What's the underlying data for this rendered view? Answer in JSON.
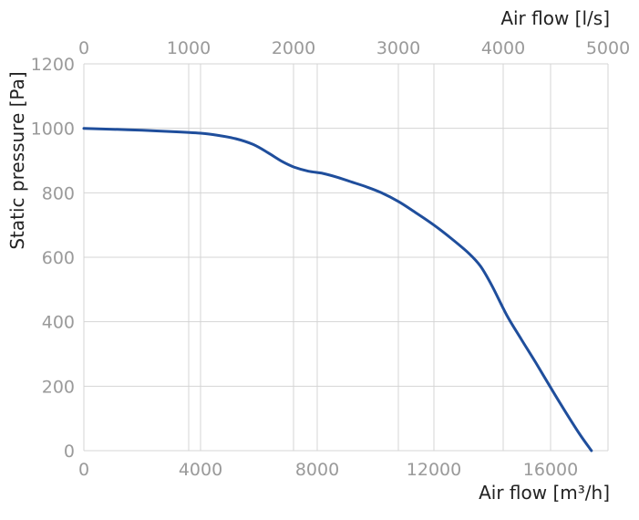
{
  "chart_data": {
    "type": "line",
    "ylabel": "Static pressure [Pa]",
    "xlabel": "Air flow [m³/h]",
    "x2label": "Air flow [l/s]",
    "xlim": [
      0,
      18000
    ],
    "ylim": [
      0,
      1200
    ],
    "x2lim": [
      0,
      5000
    ],
    "x_ticks": [
      0,
      4000,
      8000,
      12000,
      16000
    ],
    "x_tick_labels": [
      "0",
      "4000",
      "8000",
      "12000",
      "16000"
    ],
    "x2_ticks": [
      0,
      1000,
      2000,
      3000,
      4000,
      5000
    ],
    "x2_tick_labels": [
      "0",
      "1000",
      "2000",
      "3000",
      "4000",
      "5000"
    ],
    "y_ticks": [
      0,
      200,
      400,
      600,
      800,
      1000,
      1200
    ],
    "y_tick_labels": [
      "0",
      "200",
      "400",
      "600",
      "800",
      "1000",
      "1200"
    ],
    "grid": true,
    "line_color": "#1f4e9c",
    "series": [
      {
        "x": [
          0,
          1000,
          2000,
          3000,
          4000,
          4600,
          5200,
          5800,
          6300,
          6800,
          7200,
          7700,
          8200,
          8700,
          9200,
          9700,
          10200,
          10800,
          11400,
          12000,
          12600,
          13200,
          13600,
          14000,
          14500,
          15000,
          15500,
          16000,
          16500,
          17000,
          17400
        ],
        "y": [
          1000,
          997,
          994,
          990,
          985,
          978,
          968,
          950,
          925,
          897,
          880,
          867,
          860,
          848,
          833,
          818,
          800,
          772,
          737,
          700,
          658,
          612,
          572,
          510,
          420,
          345,
          272,
          196,
          122,
          51,
          0
        ]
      }
    ]
  }
}
